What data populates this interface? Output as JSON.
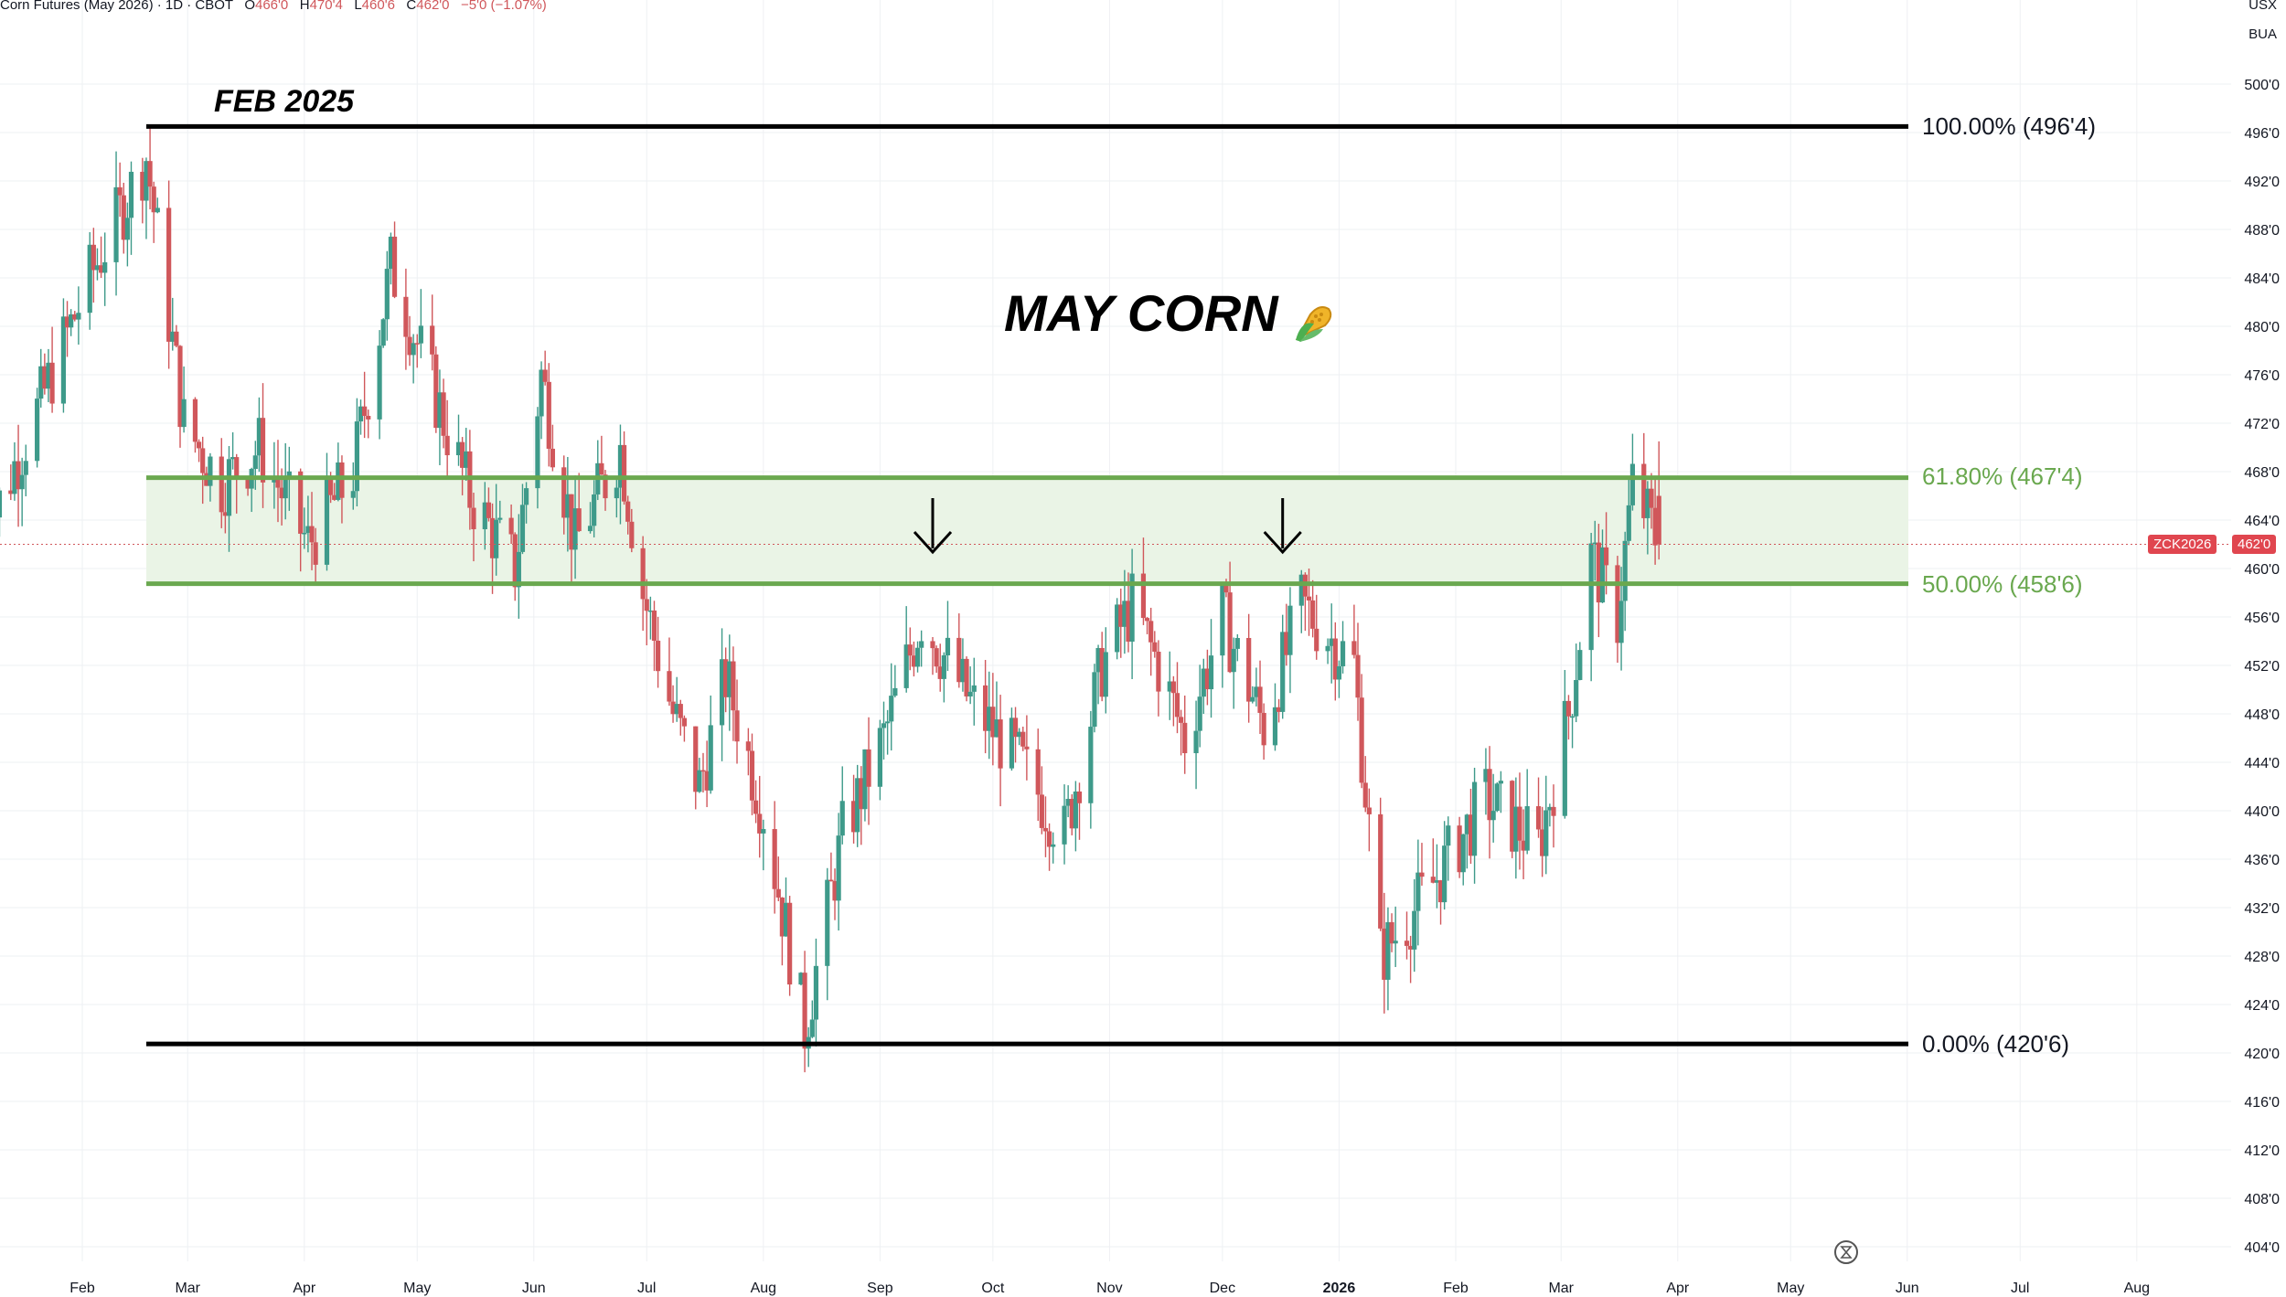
{
  "header": {
    "instrument": "Corn Futures (May 2026) · 1D · CBOT",
    "o_label": "O",
    "o_value": "466'0",
    "h_label": "H",
    "h_value": "470'4",
    "l_label": "L",
    "l_value": "460'6",
    "c_label": "C",
    "c_value": "462'0",
    "change": "−5'0 (−1.07%)"
  },
  "top_right": {
    "currency": "USX",
    "unit": "BUA"
  },
  "annotations": {
    "title": "MAY CORN",
    "title_icon": "corn-icon",
    "peak_label": "FEB 2025"
  },
  "fib_levels": {
    "l100": "100.00% (496'4)",
    "l618": "61.80% (467'4)",
    "l50": "50.00% (458'6)",
    "l0": "0.00% (420'6)"
  },
  "price_tag": {
    "symbol": "ZCK2026",
    "price": "462'0"
  },
  "colors": {
    "up": "#3e9a8a",
    "down": "#d0575b",
    "fib_green": "#6aa84f",
    "zone_fill": "#eaf4e6",
    "grid": "#eef0f3",
    "tag_bg": "#e0464f"
  },
  "chart_data": {
    "type": "candlestick",
    "title": "MAY CORN",
    "ylim": [
      402,
      502
    ],
    "y_ticks": [
      "500'0",
      "496'0",
      "492'0",
      "488'0",
      "484'0",
      "480'0",
      "476'0",
      "472'0",
      "468'0",
      "464'0",
      "460'0",
      "456'0",
      "452'0",
      "448'0",
      "444'0",
      "440'0",
      "436'0",
      "432'0",
      "428'0",
      "424'0",
      "420'0",
      "416'0",
      "412'0",
      "408'0",
      "404'0"
    ],
    "x_ticks": [
      "Feb",
      "Mar",
      "Apr",
      "May",
      "Jun",
      "Jul",
      "Aug",
      "Sep",
      "Oct",
      "Nov",
      "Dec",
      "2026",
      "Feb",
      "Mar",
      "Apr",
      "May",
      "Jun",
      "Jul",
      "Aug"
    ],
    "x_range": [
      "2025-01-06",
      "2026-08-31"
    ],
    "fib_retracement": {
      "start": "2025-02-18",
      "end": "2025-08-12",
      "high": 496.5,
      "low": 420.75,
      "levels": [
        {
          "pct": 100,
          "price": 496.5
        },
        {
          "pct": 61.8,
          "price": 467.5
        },
        {
          "pct": 50,
          "price": 458.75
        },
        {
          "pct": 0,
          "price": 420.75
        }
      ]
    },
    "down_arrows": [
      "2025-09-15",
      "2025-12-17"
    ],
    "candles_anchor_prices": [
      {
        "date": "2025-01-06",
        "price": 462.5
      },
      {
        "date": "2025-01-20",
        "price": 473
      },
      {
        "date": "2025-02-03",
        "price": 484
      },
      {
        "date": "2025-02-18",
        "price": 494
      },
      {
        "date": "2025-02-28",
        "price": 472
      },
      {
        "date": "2025-03-10",
        "price": 467
      },
      {
        "date": "2025-03-20",
        "price": 470
      },
      {
        "date": "2025-04-02",
        "price": 462
      },
      {
        "date": "2025-04-14",
        "price": 468
      },
      {
        "date": "2025-04-24",
        "price": 485
      },
      {
        "date": "2025-05-05",
        "price": 475
      },
      {
        "date": "2025-05-15",
        "price": 466
      },
      {
        "date": "2025-05-27",
        "price": 460
      },
      {
        "date": "2025-06-03",
        "price": 476
      },
      {
        "date": "2025-06-12",
        "price": 462
      },
      {
        "date": "2025-06-24",
        "price": 470
      },
      {
        "date": "2025-06-30",
        "price": 458
      },
      {
        "date": "2025-07-08",
        "price": 448
      },
      {
        "date": "2025-07-15",
        "price": 442
      },
      {
        "date": "2025-07-22",
        "price": 451
      },
      {
        "date": "2025-08-01",
        "price": 440
      },
      {
        "date": "2025-08-12",
        "price": 422
      },
      {
        "date": "2025-08-22",
        "price": 438
      },
      {
        "date": "2025-09-02",
        "price": 446
      },
      {
        "date": "2025-09-12",
        "price": 456
      },
      {
        "date": "2025-09-25",
        "price": 449
      },
      {
        "date": "2025-10-08",
        "price": 444
      },
      {
        "date": "2025-10-20",
        "price": 438
      },
      {
        "date": "2025-10-30",
        "price": 452
      },
      {
        "date": "2025-11-07",
        "price": 457
      },
      {
        "date": "2025-11-14",
        "price": 452
      },
      {
        "date": "2025-11-21",
        "price": 446
      },
      {
        "date": "2025-12-01",
        "price": 456
      },
      {
        "date": "2025-12-12",
        "price": 447
      },
      {
        "date": "2025-12-22",
        "price": 457
      },
      {
        "date": "2026-01-05",
        "price": 452
      },
      {
        "date": "2026-01-12",
        "price": 428
      },
      {
        "date": "2026-01-26",
        "price": 434
      },
      {
        "date": "2026-02-09",
        "price": 441
      },
      {
        "date": "2026-02-23",
        "price": 437
      },
      {
        "date": "2026-03-03",
        "price": 448
      },
      {
        "date": "2026-03-09",
        "price": 461
      },
      {
        "date": "2026-03-16",
        "price": 456
      },
      {
        "date": "2026-03-20",
        "price": 467
      },
      {
        "date": "2026-03-27",
        "price": 462
      }
    ],
    "last_candle": {
      "open": 466,
      "high": 470.5,
      "low": 460.75,
      "close": 462
    }
  }
}
